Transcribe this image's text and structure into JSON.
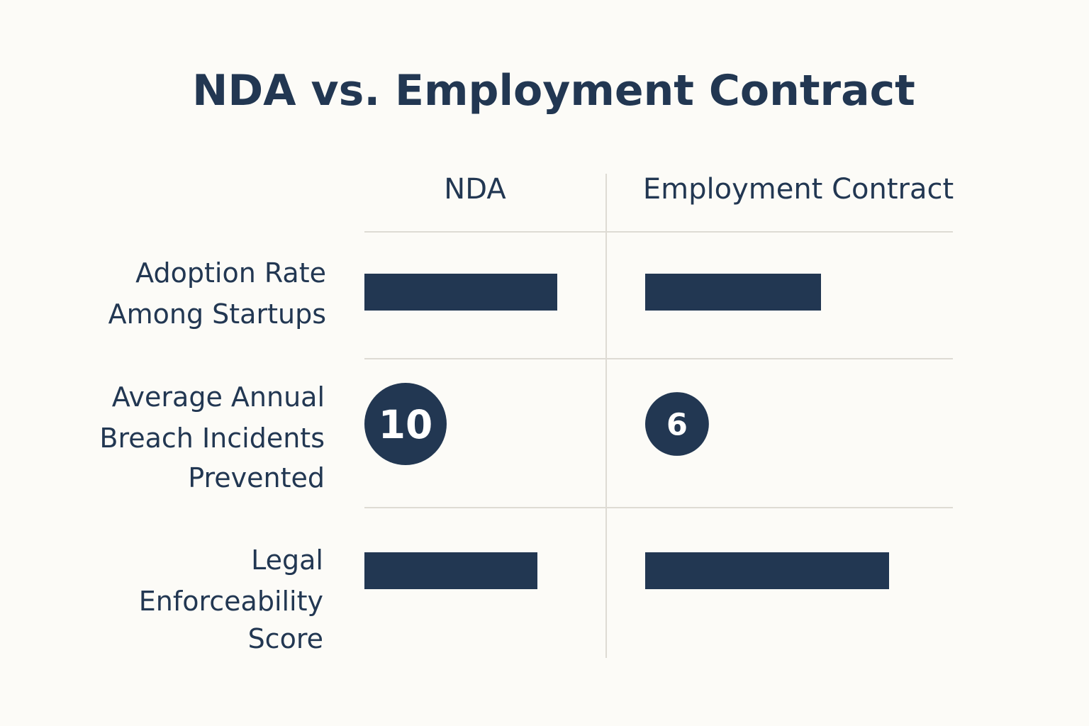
{
  "chart_data": {
    "type": "table",
    "title": "NDA vs. Employment Contract",
    "columns": [
      "NDA",
      "Employment Contract"
    ],
    "rows": [
      {
        "label": [
          "Adoption Rate",
          "Among Startups"
        ],
        "kind": "bar",
        "values": [
          0.79,
          0.72
        ]
      },
      {
        "label": [
          "Average Annual",
          "Breach Incidents",
          "Prevented"
        ],
        "kind": "circle",
        "values": [
          10,
          6
        ],
        "value_labels": [
          "10",
          "6"
        ]
      },
      {
        "label": [
          "Legal",
          "Enforceability",
          "Score"
        ],
        "kind": "bar",
        "values": [
          0.71,
          1.0
        ]
      }
    ],
    "colors": {
      "mark": "#223752",
      "grid": "#dedbd4",
      "background": "#fcfbf7"
    }
  }
}
